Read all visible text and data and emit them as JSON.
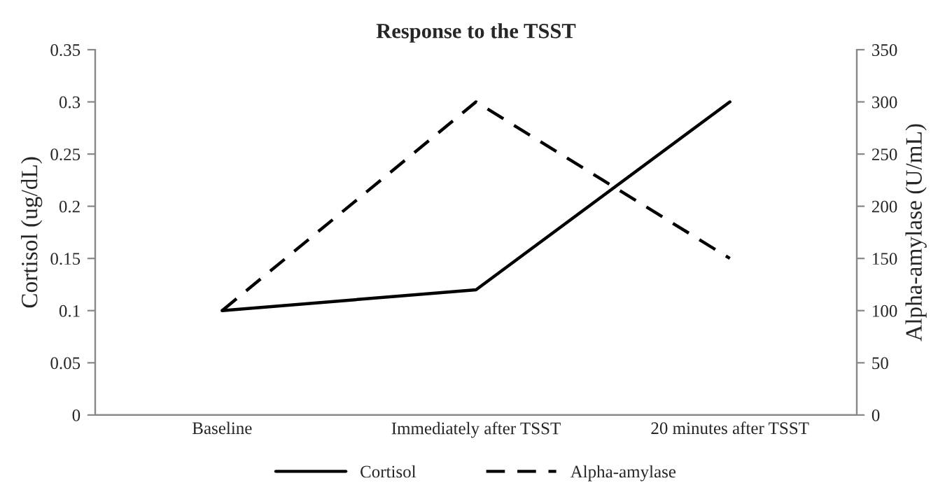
{
  "chart_data": {
    "type": "line",
    "title": "Response to the TSST",
    "ylabel": "Cortisol (ug/dL)",
    "y2label": "Alpha-amylase (U/mL)",
    "categories": [
      "Baseline",
      "Immediately after TSST",
      "20 minutes after TSST"
    ],
    "series": [
      {
        "name": "Cortisol",
        "color": "#000000",
        "values": [
          0.1,
          0.12,
          0.3
        ],
        "line_style": "solid"
      },
      {
        "name": "Alpha-amylase",
        "color": "#000000",
        "values": [
          100,
          300,
          150
        ],
        "axis": "y2",
        "line_style": "dashed"
      }
    ],
    "ylim": [
      0,
      0.35
    ],
    "yticks": [
      0,
      0.05,
      0.1,
      0.15,
      0.2,
      0.25,
      0.3,
      0.35
    ],
    "y2lim": [
      0,
      350
    ],
    "y2ticks": [
      0,
      50,
      100,
      150,
      200,
      250,
      300,
      350
    ],
    "grid": false,
    "legend": "bottom",
    "marker": "none"
  }
}
